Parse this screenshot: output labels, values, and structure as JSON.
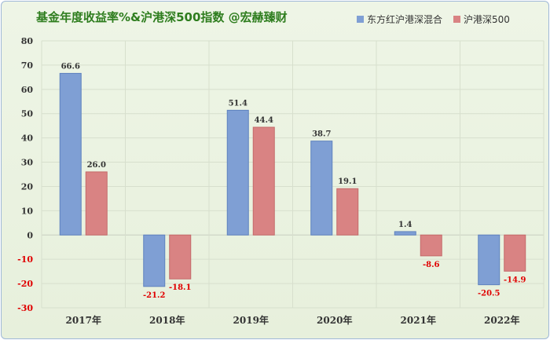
{
  "chart_data": {
    "type": "bar",
    "title": "基金年度收益率%&沪港深500指数 @宏赫臻财",
    "categories": [
      "2017年",
      "2018年",
      "2019年",
      "2020年",
      "2021年",
      "2022年"
    ],
    "series": [
      {
        "name": "东方红沪港深混合",
        "values": [
          66.6,
          -21.2,
          51.4,
          38.7,
          1.4,
          -20.5
        ],
        "color": "#7f9fd4"
      },
      {
        "name": "沪港深500",
        "values": [
          26.0,
          -18.1,
          44.4,
          19.1,
          -8.6,
          -14.9
        ],
        "color": "#d98383"
      }
    ],
    "data_labels": [
      [
        "66.6",
        "-21.2",
        "51.4",
        "38.7",
        "1.4",
        "-20.5"
      ],
      [
        "26.0",
        "-18.1",
        "44.4",
        "19.1",
        "-8.6",
        "-14.9"
      ]
    ],
    "ylim": [
      -30,
      80
    ],
    "yticks": [
      "-30",
      "-20",
      "-10",
      "0",
      "10",
      "20",
      "30",
      "40",
      "50",
      "60",
      "70",
      "80"
    ],
    "xlabel": "",
    "ylabel": "",
    "grid": true,
    "legend_position": "top-right",
    "negative_label_color": "#e00000",
    "positive_label_color": "#333333"
  }
}
